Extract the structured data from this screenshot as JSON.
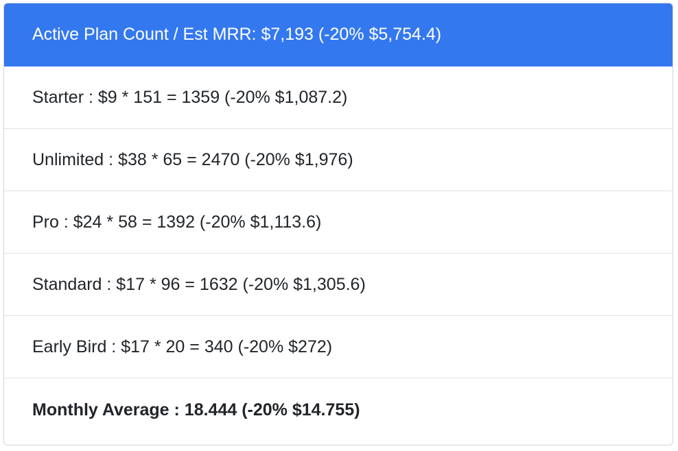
{
  "header": {
    "label": "Active Plan Count / Est MRR: $7,193 (-20% $5,754.4)",
    "accent_color": "#3478f0"
  },
  "plans": [
    {
      "label": "Starter : $9 * 151 = 1359 (-20% $1,087.2)"
    },
    {
      "label": "Unlimited : $38 * 65 = 2470 (-20% $1,976)"
    },
    {
      "label": "Pro : $24 * 58 = 1392 (-20% $1,113.6)"
    },
    {
      "label": "Standard : $17 * 96 = 1632 (-20% $1,305.6)"
    },
    {
      "label": "Early Bird : $17 * 20 = 340 (-20% $272)"
    }
  ],
  "summary": {
    "label": "Monthly Average : 18.444 (-20% $14.755)"
  }
}
